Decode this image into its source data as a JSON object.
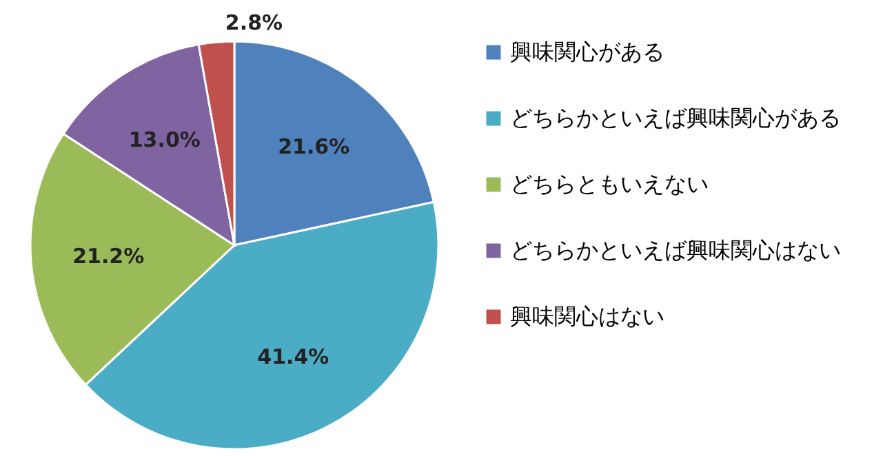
{
  "chart_data": {
    "type": "pie",
    "categories": [
      "興味関心がある",
      "どちらかといえば興味関心がある",
      "どちらともいえない",
      "どちらかといえば興味関心はない",
      "興味関心はない"
    ],
    "values": [
      21.6,
      41.4,
      21.2,
      13.0,
      2.8
    ],
    "colors": [
      "#4f81bd",
      "#4bacc6",
      "#9bbb59",
      "#8064a2",
      "#c0504d"
    ],
    "value_labels": [
      "21.6%",
      "41.4%",
      "21.2%",
      "13.0%",
      "2.8%"
    ],
    "legend": "right"
  }
}
